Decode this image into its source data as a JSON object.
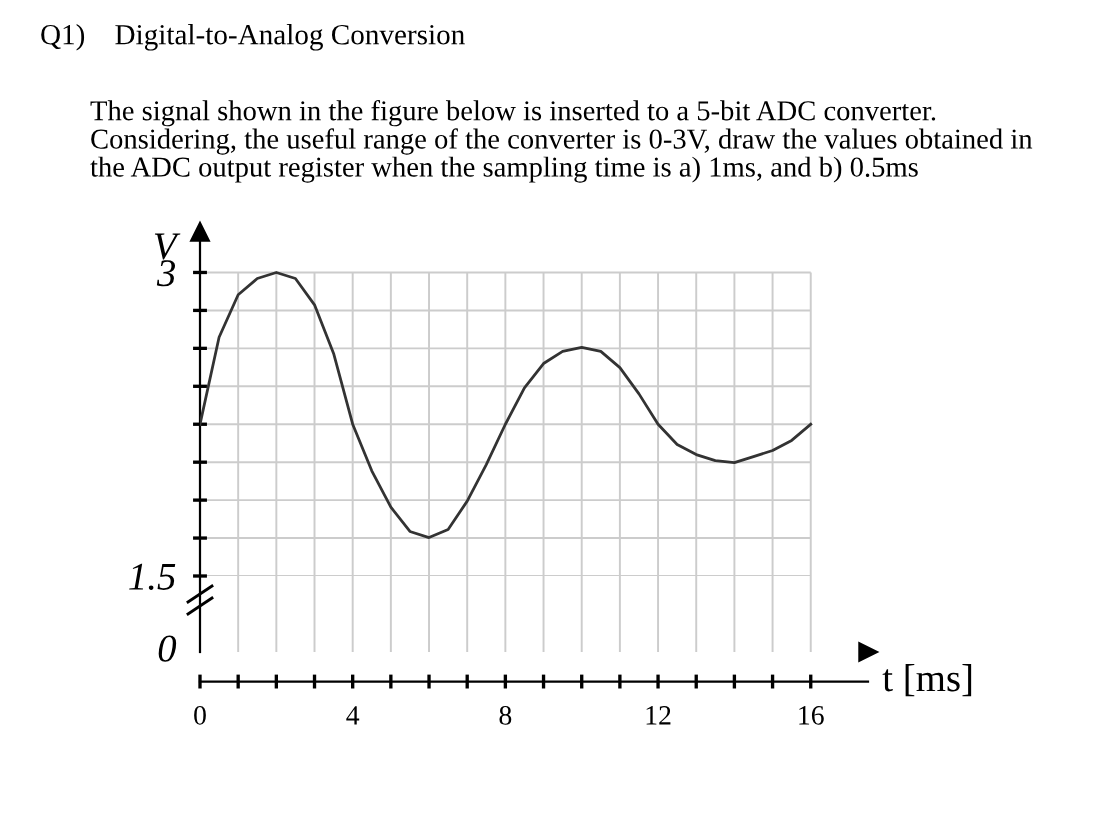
{
  "chart_data": {
    "type": "line",
    "title": "Q1)    Digital-to-Analog Conversion",
    "subtitle": "The signal shown in the figure below is inserted to a 5-bit ADC converter.\nConsidering, the useful range of the converter is 0-3V, draw the values obtained in\nthe ADC output register when the sampling time is a) 1ms, and b) 0.5ms",
    "xlabel": "t [ms]",
    "ylabel": "V",
    "annotations": [
      "0"
    ],
    "x": [
      0,
      0.5,
      1,
      1.5,
      2,
      2.5,
      3,
      3.5,
      4,
      4.5,
      5,
      5.5,
      6,
      6.5,
      7,
      7.5,
      8,
      8.5,
      9,
      9.5,
      10,
      10.5,
      11,
      11.5,
      12,
      12.5,
      13,
      13.5,
      14,
      14.5,
      15,
      15.5,
      16
    ],
    "series": [
      {
        "color": "#333333",
        "values": [
          2.25,
          2.68,
          2.89,
          2.97,
          3.0,
          2.97,
          2.84,
          2.6,
          2.25,
          2.02,
          1.84,
          1.72,
          1.69,
          1.73,
          1.87,
          2.05,
          2.25,
          2.43,
          2.55,
          2.61,
          2.63,
          2.61,
          2.53,
          2.4,
          2.25,
          2.15,
          2.1,
          2.07,
          2.06,
          2.09,
          2.12,
          2.17,
          2.25
        ]
      }
    ],
    "xlim": [
      0,
      17.5
    ],
    "ylim": [
      1.5,
      3.2
    ],
    "xticks": [
      0,
      {
        "value": 1,
        "label": null
      },
      {
        "value": 2,
        "label": null
      },
      {
        "value": 3,
        "label": null
      },
      4,
      {
        "value": 5,
        "label": null
      },
      {
        "value": 6,
        "label": null
      },
      {
        "value": 7,
        "label": null
      },
      8,
      {
        "value": 9,
        "label": null
      },
      {
        "value": 10,
        "label": null
      },
      {
        "value": 11,
        "label": null
      },
      12,
      {
        "value": 13,
        "label": null
      },
      {
        "value": 14,
        "label": null
      },
      {
        "value": 15,
        "label": null
      },
      16
    ],
    "yticks": [
      1.5,
      {
        "value": 1.6875,
        "label": null
      },
      {
        "value": 1.875,
        "label": null
      },
      {
        "value": 2.0625,
        "label": null
      },
      {
        "value": 2.25,
        "label": null
      },
      {
        "value": 2.4375,
        "label": null
      },
      {
        "value": 2.625,
        "label": null
      },
      {
        "value": 2.8125,
        "label": null
      },
      3
    ],
    "grid": true,
    "marker": "none",
    "line_style": "solid"
  }
}
